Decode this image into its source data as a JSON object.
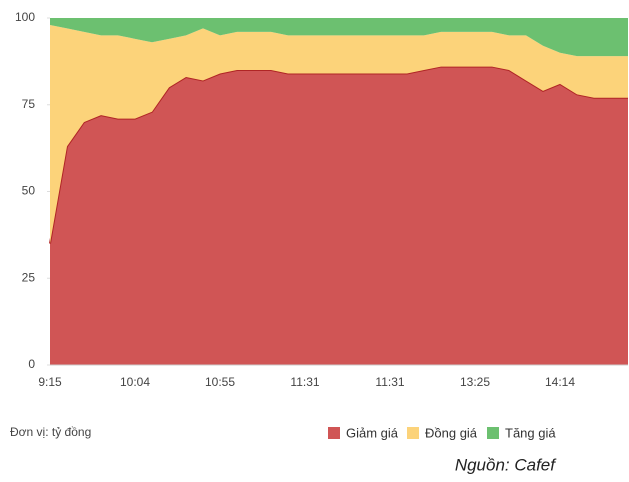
{
  "chart_data": {
    "type": "stacked_area",
    "categories": [
      "9:15",
      null,
      null,
      null,
      null,
      "10:04",
      null,
      null,
      null,
      null,
      "10:55",
      null,
      null,
      null,
      null,
      "11:31",
      null,
      null,
      null,
      null,
      "11:31",
      null,
      null,
      null,
      null,
      "13:25",
      null,
      null,
      null,
      null,
      "14:14",
      null,
      null,
      null,
      null
    ],
    "series": [
      {
        "name": "Giảm giá",
        "color": "#d05555",
        "values": [
          35,
          63,
          70,
          72,
          71,
          71,
          73,
          80,
          83,
          82,
          84,
          85,
          85,
          85,
          84,
          84,
          84,
          84,
          84,
          84,
          84,
          84,
          85,
          86,
          86,
          86,
          86,
          85,
          82,
          79,
          81,
          78,
          77,
          77,
          77
        ]
      },
      {
        "name": "Đồng giá",
        "color": "#fcd37a",
        "values": [
          63,
          34,
          26,
          23,
          24,
          23,
          20,
          14,
          12,
          15,
          11,
          11,
          11,
          11,
          11,
          11,
          11,
          11,
          11,
          11,
          11,
          11,
          10,
          10,
          10,
          10,
          10,
          10,
          13,
          13,
          9,
          11,
          12,
          12,
          12
        ]
      },
      {
        "name": "Tăng giá",
        "color": "#6cc070",
        "values": [
          2,
          3,
          4,
          5,
          5,
          6,
          7,
          6,
          5,
          3,
          5,
          4,
          4,
          4,
          5,
          5,
          5,
          5,
          5,
          5,
          5,
          5,
          5,
          4,
          4,
          4,
          4,
          5,
          5,
          8,
          10,
          11,
          11,
          11,
          11
        ]
      }
    ],
    "ylim": [
      0,
      100
    ],
    "yticks": [
      0,
      25,
      50,
      75,
      100
    ],
    "unit_note": "Đơn vị: tỷ đồng",
    "source": "Nguồn: Cafef"
  }
}
